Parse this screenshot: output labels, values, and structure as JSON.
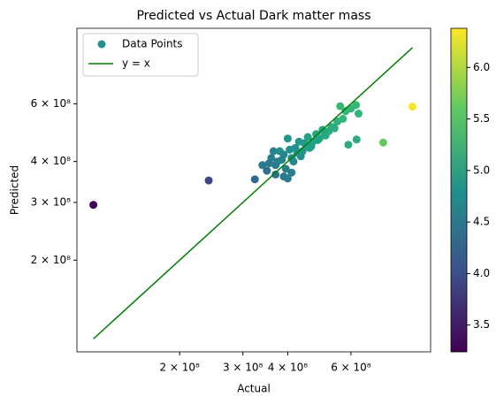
{
  "chart_data": {
    "type": "scatter",
    "title": "Predicted vs Actual Dark matter mass",
    "xlabel": "Actual",
    "ylabel": "Predicted",
    "xscale": "log",
    "yscale": "log",
    "xlim": [
      103500000.0,
      1000000000.0
    ],
    "ylim": [
      105000000.0,
      1020000000.0
    ],
    "xticks": [
      {
        "value": 200000000.0,
        "label": "2 × 10⁸"
      },
      {
        "value": 300000000.0,
        "label": "3 × 10⁸"
      },
      {
        "value": 400000000.0,
        "label": "4 × 10⁸"
      },
      {
        "value": 600000000.0,
        "label": "6 × 10⁸"
      }
    ],
    "yticks": [
      {
        "value": 200000000.0,
        "label": "2 × 10⁸"
      },
      {
        "value": 300000000.0,
        "label": "3 × 10⁸"
      },
      {
        "value": 400000000.0,
        "label": "4 × 10⁸"
      },
      {
        "value": 600000000.0,
        "label": "6 × 10⁸"
      }
    ],
    "legend": "upper left",
    "colormap": "viridis",
    "clim": [
      3.24,
      6.38
    ],
    "cticks": [
      3.5,
      {
        "value": 4,
        "label": "4.0"
      },
      4.5,
      {
        "value": 5,
        "label": "5.0"
      },
      5.5,
      {
        "value": 6,
        "label": "6.0"
      }
    ],
    "series": [
      {
        "name": "Data Points",
        "kind": "points",
        "x": [
          115000000.0,
          241000000.0,
          324000000.0,
          738000000.0,
          890000000.0,
          622000000.0,
          590000000.0,
          340000000.0,
          350000000.0,
          360000000.0,
          355000000.0,
          370000000.0,
          380000000.0,
          375000000.0,
          390000000.0,
          400000000.0,
          395000000.0,
          410000000.0,
          420000000.0,
          415000000.0,
          430000000.0,
          440000000.0,
          435000000.0,
          450000000.0,
          460000000.0,
          455000000.0,
          470000000.0,
          480000000.0,
          490000000.0,
          500000000.0,
          510000000.0,
          520000000.0,
          530000000.0,
          550000000.0,
          560000000.0,
          580000000.0,
          600000000.0,
          620000000.0,
          630000000.0,
          365000000.0,
          385000000.0,
          405000000.0,
          425000000.0,
          445000000.0,
          465000000.0,
          485000000.0,
          505000000.0,
          540000000.0,
          570000000.0,
          390000000.0,
          400000000.0,
          370000000.0,
          410000000.0
        ],
        "y": [
          295000000.0,
          350000000.0,
          353000000.0,
          457000000.0,
          588000000.0,
          467000000.0,
          450000000.0,
          390000000.0,
          375000000.0,
          410000000.0,
          395000000.0,
          390000000.0,
          430000000.0,
          400000000.0,
          420000000.0,
          470000000.0,
          380000000.0,
          410000000.0,
          440000000.0,
          400000000.0,
          460000000.0,
          430000000.0,
          415000000.0,
          450000000.0,
          440000000.0,
          475000000.0,
          460000000.0,
          485000000.0,
          470000000.0,
          500000000.0,
          480000000.0,
          495000000.0,
          510000000.0,
          530000000.0,
          590000000.0,
          570000000.0,
          580000000.0,
          595000000.0,
          560000000.0,
          430000000.0,
          405000000.0,
          435000000.0,
          425000000.0,
          455000000.0,
          445000000.0,
          465000000.0,
          490000000.0,
          505000000.0,
          540000000.0,
          360000000.0,
          355000000.0,
          365000000.0,
          370000000.0
        ],
        "c": [
          3.25,
          3.9,
          4.3,
          5.6,
          6.35,
          5.2,
          5.2,
          4.5,
          4.4,
          4.6,
          4.5,
          4.55,
          4.8,
          4.6,
          4.7,
          4.9,
          4.6,
          4.75,
          4.85,
          4.7,
          4.95,
          4.9,
          4.8,
          5.0,
          5.0,
          5.05,
          5.05,
          5.1,
          5.1,
          5.15,
          5.15,
          5.2,
          5.2,
          5.25,
          5.35,
          5.3,
          5.3,
          5.35,
          5.3,
          4.7,
          4.65,
          4.8,
          4.85,
          4.95,
          5.0,
          5.05,
          5.1,
          5.2,
          5.3,
          4.5,
          4.55,
          4.45,
          4.6
        ]
      },
      {
        "name": "y = x",
        "kind": "line",
        "color": "#008000",
        "x": [
          115000000.0,
          890000000.0
        ],
        "y": [
          115000000.0,
          890000000.0
        ]
      }
    ]
  }
}
